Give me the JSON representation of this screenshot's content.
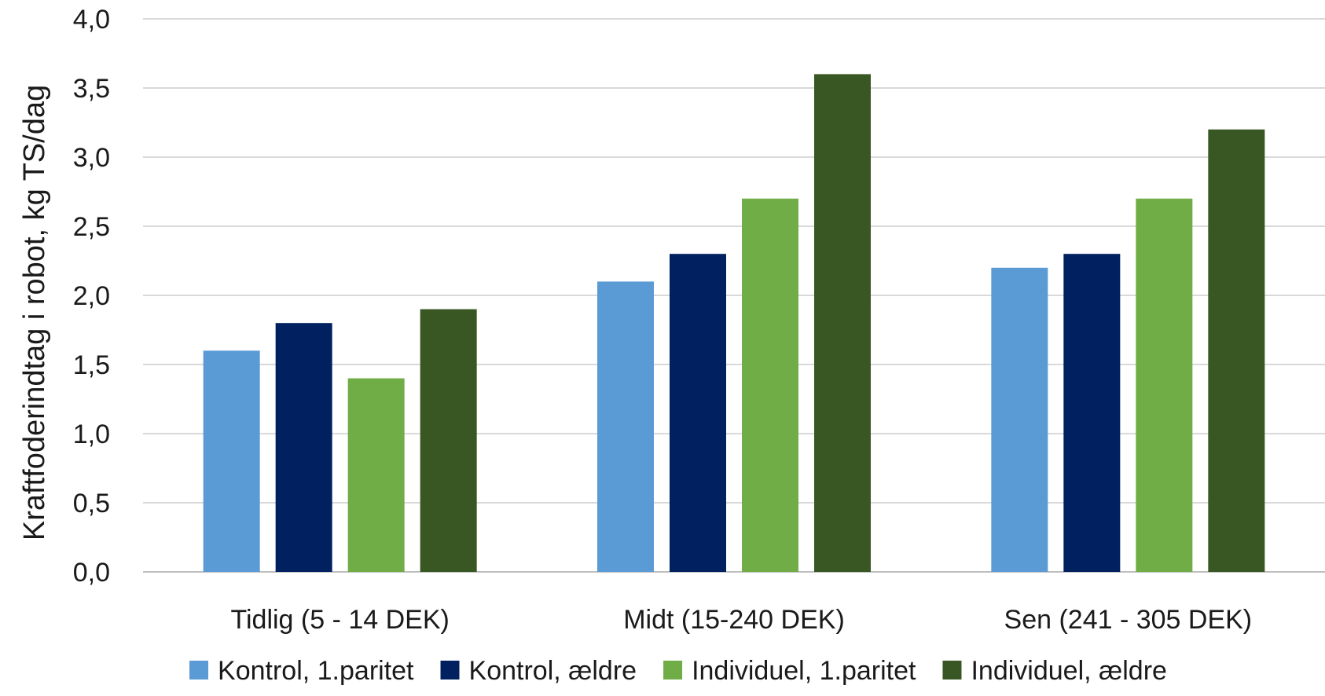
{
  "chart_data": {
    "type": "bar",
    "title": "",
    "xlabel": "",
    "ylabel": "Kraftfoderindtag i robot, kg TS/dag",
    "ylim": [
      0,
      4
    ],
    "ytick_step": 0.5,
    "ytick_labels": [
      "0,0",
      "0,5",
      "1,0",
      "1,5",
      "2,0",
      "2,5",
      "3,0",
      "3,5",
      "4,0"
    ],
    "grid": true,
    "legend_position": "bottom",
    "categories": [
      "Tidlig (5 - 14 DEK)",
      "Midt (15-240 DEK)",
      "Sen (241 - 305 DEK)"
    ],
    "series": [
      {
        "name": "Kontrol, 1.paritet",
        "color": "#5b9bd5",
        "values": [
          1.6,
          2.1,
          2.2
        ]
      },
      {
        "name": "Kontrol, ældre",
        "color": "#002060",
        "values": [
          1.8,
          2.3,
          2.3
        ]
      },
      {
        "name": "Individuel, 1.paritet",
        "color": "#70ad47",
        "values": [
          1.4,
          2.7,
          2.7
        ]
      },
      {
        "name": "Individuel, ældre",
        "color": "#385723",
        "values": [
          1.9,
          3.6,
          3.2
        ]
      }
    ]
  }
}
